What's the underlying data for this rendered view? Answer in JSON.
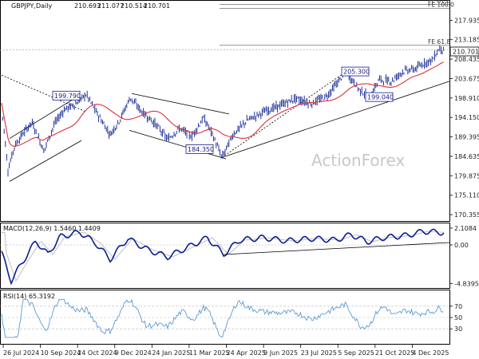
{
  "chart_data": {
    "type": "candlestick",
    "symbol_header": "GBPJPY,Daily",
    "ohlc": {
      "open": "210.693",
      "high": "211.077",
      "low": "210.514",
      "close": "210.701"
    },
    "last_price": "210.701",
    "watermark": "ActionForex",
    "price_axis": {
      "ticks": [
        "217.935",
        "213.185",
        "208.435",
        "203.675",
        "198.910",
        "194.150",
        "189.395",
        "184.635",
        "179.875",
        "175.110",
        "170.355"
      ],
      "range": [
        169.0,
        222.5
      ]
    },
    "swing_labels": [
      {
        "text": "199.790",
        "value": 199.79
      },
      {
        "text": "184.350",
        "value": 184.35
      },
      {
        "text": "205.300",
        "value": 205.3
      },
      {
        "text": "199.040",
        "value": 199.04
      }
    ],
    "fib_levels": [
      {
        "text": "FE 61.8",
        "value": 221.8
      },
      {
        "text": "FE 100.0",
        "value": 220.8
      },
      {
        "text": "FE 61.8",
        "value": 211.8
      }
    ],
    "moving_average": {
      "color": "#e0303a"
    },
    "macd": {
      "header": "MACD(12,26,9) 1.5460 1.4409",
      "ticks": [
        "2.1084",
        "0.00",
        "-4.8395"
      ],
      "range": [
        -5.3,
        2.6
      ]
    },
    "rsi": {
      "header": "RSI(14) 65.3192",
      "ticks": [
        "70",
        "50",
        "30"
      ],
      "range": [
        5,
        95
      ]
    },
    "date_ticks": [
      "26 Jul 2024",
      "10 Sep 2024",
      "24 Oct 2024",
      "9 Dec 2024",
      "24 Jan 2025",
      "11 Mar 2025",
      "24 Apr 2025",
      "9 Jun 2025",
      "23 Jul 2025",
      "5 Sep 2025",
      "21 Oct 2025",
      "4 Dec 2025"
    ],
    "colors": {
      "candle": "#0b1f8f",
      "ma": "#e0303a",
      "macd_line": "#0b1f8f",
      "signal_line": "#bfbfbf",
      "trendline": "#000000",
      "rsi_line": "#5b9bd5"
    }
  }
}
